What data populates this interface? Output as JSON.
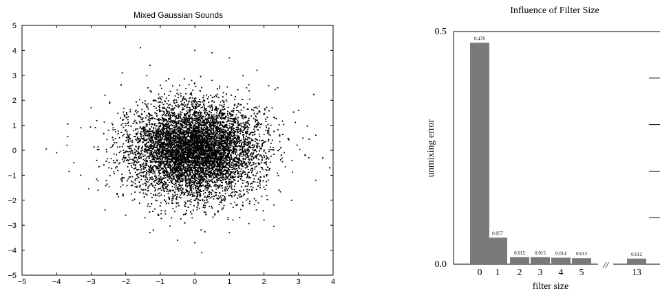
{
  "chart_data": [
    {
      "type": "scatter",
      "title": "Mixed Gaussian Sounds",
      "xlabel": "",
      "ylabel": "",
      "xlim": [
        -5,
        4
      ],
      "ylim": [
        -5,
        5
      ],
      "xticks": [
        -5,
        -4,
        -3,
        -2,
        -1,
        0,
        1,
        2,
        3,
        4
      ],
      "yticks": [
        -5,
        -4,
        -3,
        -2,
        -1,
        0,
        1,
        2,
        3,
        4,
        5
      ],
      "grid": false,
      "legend": "none",
      "point_color": "#000000",
      "sampled_points": [
        [
          -4.3,
          0.05
        ],
        [
          -4.0,
          -0.1
        ],
        [
          -3.7,
          0.2
        ],
        [
          -3.5,
          -0.5
        ],
        [
          -3.3,
          0.9
        ],
        [
          -3.0,
          1.7
        ],
        [
          -2.6,
          2.2
        ],
        [
          -2.1,
          3.1
        ],
        [
          -1.3,
          3.4
        ],
        [
          0.0,
          4.0
        ],
        [
          0.5,
          3.9
        ],
        [
          1.0,
          3.7
        ],
        [
          1.8,
          3.2
        ],
        [
          2.4,
          2.5
        ],
        [
          3.0,
          1.6
        ],
        [
          3.5,
          0.6
        ],
        [
          3.9,
          -0.7
        ],
        [
          3.5,
          -1.2
        ],
        [
          2.8,
          -2.0
        ],
        [
          2.0,
          -2.8
        ],
        [
          1.0,
          -3.3
        ],
        [
          0.0,
          -3.7
        ],
        [
          -0.5,
          -3.6
        ],
        [
          -1.3,
          -3.3
        ],
        [
          -2.0,
          -2.6
        ],
        [
          -2.8,
          -1.6
        ],
        [
          -3.3,
          -1.0
        ],
        [
          -1.0,
          2.6
        ],
        [
          1.5,
          2.5
        ],
        [
          2.2,
          1.0
        ],
        [
          -2.5,
          0.8
        ],
        [
          -1.8,
          -2.0
        ],
        [
          1.2,
          -2.2
        ],
        [
          0.2,
          -4.1
        ],
        [
          3.3,
          -0.3
        ]
      ]
    },
    {
      "type": "bar",
      "title": "Influence of Filter Size",
      "xlabel": "filter size",
      "ylabel": "unmixing error",
      "categories": [
        "0",
        "1",
        "2",
        "3",
        "4",
        "5",
        "13"
      ],
      "values": [
        0.476,
        0.057,
        0.015,
        0.015,
        0.014,
        0.013,
        0.012
      ],
      "data_labels": [
        "0.476",
        "0.057",
        "0.015",
        "0.015",
        "0.014",
        "0.013",
        "0.012"
      ],
      "ylim": [
        0,
        0.5
      ],
      "yticks": [
        0.0,
        0.5
      ],
      "ytick_labels": [
        "0.0",
        "0.5"
      ],
      "axis_break_between": [
        "5",
        "13"
      ],
      "axis_break_label": "//",
      "bar_color": "#7a7a7a",
      "grid": false,
      "legend": "none"
    }
  ]
}
